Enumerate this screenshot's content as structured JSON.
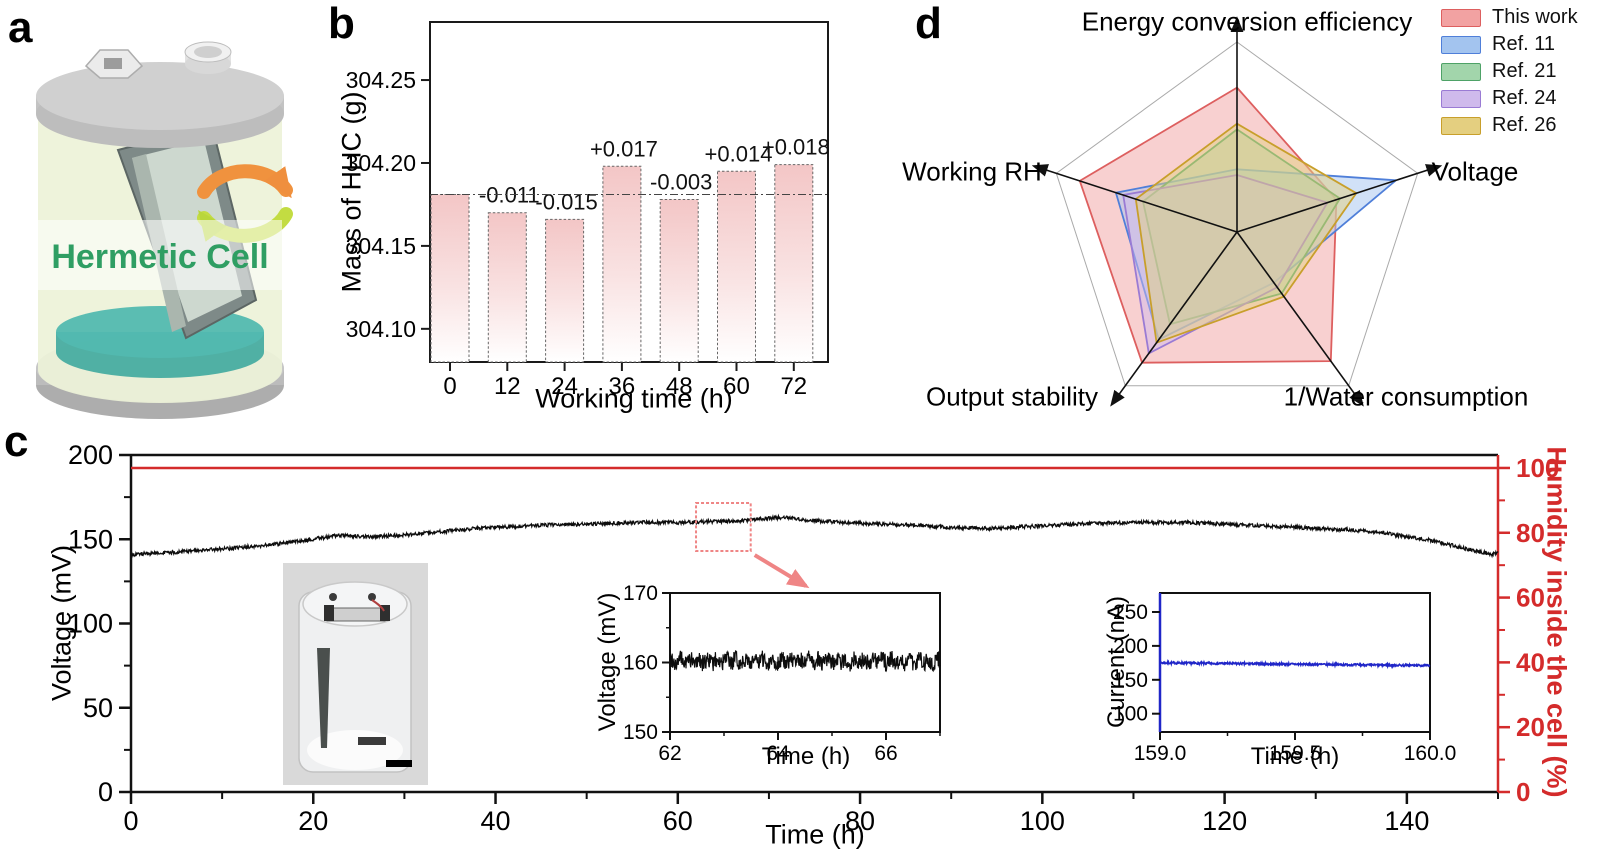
{
  "figure": {
    "panel_labels": {
      "a": "a",
      "b": "b",
      "c": "c",
      "d": "d"
    }
  },
  "colors": {
    "accent_red": "#d42b2b",
    "current_blue": "#2026c8",
    "trace_black": "#0d0d0d",
    "bar_pink": "#f3c6c6",
    "zoom_pink": "#ef8585"
  },
  "panel_a": {
    "caption": "Hermetic Cell",
    "caption_color": "#2f9e63"
  },
  "chart_data": [
    {
      "id": "mass_bar",
      "type": "bar",
      "title": "",
      "xlabel": "Working time (h)",
      "ylabel": "Mass of HHC (g)",
      "categories": [
        "0",
        "12",
        "24",
        "36",
        "48",
        "60",
        "72"
      ],
      "values": [
        304.181,
        304.17,
        304.166,
        304.198,
        304.178,
        304.195,
        304.199
      ],
      "delta_labels": [
        "",
        "-0.011",
        "-0.015",
        "+0.017",
        "-0.003",
        "+0.014",
        "+0.018"
      ],
      "ylim": [
        304.08,
        304.285
      ],
      "yticks": [
        304.1,
        304.15,
        304.2,
        304.25
      ],
      "ytick_labels": [
        "304.10",
        "304.15",
        "304.20",
        "304.25"
      ],
      "reference_line": 304.181,
      "grid": false
    },
    {
      "id": "stability_line",
      "type": "line",
      "xlabel": "Time (h)",
      "ylabel_left": "Voltage (mV)",
      "ylabel_right": "Humidity inside the cell (%)",
      "xlim": [
        0,
        150
      ],
      "xticks": [
        0,
        20,
        40,
        60,
        80,
        100,
        120,
        140
      ],
      "ylim_left": [
        0,
        200
      ],
      "yticks_left": [
        0,
        50,
        100,
        150,
        200
      ],
      "ylim_right": [
        0,
        104
      ],
      "yticks_right": [
        0,
        20,
        40,
        60,
        80,
        100
      ],
      "humidity_value": 100,
      "voltage_anchor_points": [
        [
          0,
          141
        ],
        [
          4,
          142
        ],
        [
          8,
          143.5
        ],
        [
          12,
          145
        ],
        [
          16,
          147
        ],
        [
          20,
          150
        ],
        [
          23,
          152.5
        ],
        [
          26,
          151.5
        ],
        [
          30,
          152.5
        ],
        [
          34,
          154.5
        ],
        [
          38,
          156.5
        ],
        [
          42,
          157.5
        ],
        [
          46,
          158.5
        ],
        [
          50,
          159
        ],
        [
          55,
          160
        ],
        [
          60,
          160
        ],
        [
          64,
          160.5
        ],
        [
          67,
          161
        ],
        [
          70,
          162.5
        ],
        [
          72,
          163
        ],
        [
          74,
          161.5
        ],
        [
          78,
          160
        ],
        [
          82,
          159
        ],
        [
          86,
          158.5
        ],
        [
          90,
          157
        ],
        [
          94,
          156.5
        ],
        [
          98,
          157.5
        ],
        [
          102,
          158.5
        ],
        [
          106,
          159.5
        ],
        [
          110,
          160
        ],
        [
          114,
          160
        ],
        [
          118,
          159.5
        ],
        [
          122,
          158.5
        ],
        [
          126,
          157.5
        ],
        [
          130,
          156.5
        ],
        [
          134,
          155.5
        ],
        [
          137,
          154
        ],
        [
          140,
          151.5
        ],
        [
          143,
          149
        ],
        [
          146,
          145
        ],
        [
          148,
          142.5
        ],
        [
          149.3,
          141
        ],
        [
          150,
          142
        ]
      ],
      "noise_mV": 1.1,
      "zoom_box": {
        "x": [
          62,
          68
        ],
        "y": [
          143,
          171.5
        ]
      }
    },
    {
      "id": "inset_voltage",
      "type": "line",
      "xlabel": "Time (h)",
      "ylabel": "Voltage (mV)",
      "xlim": [
        62,
        67
      ],
      "xticks": [
        62,
        64,
        66
      ],
      "ylim": [
        150,
        170
      ],
      "yticks": [
        150,
        160,
        170
      ],
      "mean_mV": 160.2,
      "noise_mV": 1.2
    },
    {
      "id": "inset_current",
      "type": "line",
      "xlabel": "Time (h)",
      "ylabel": "Current (nA)",
      "xlim": [
        159.0,
        160.0
      ],
      "xticks": [
        159.0,
        159.5,
        160.0
      ],
      "xtick_labels": [
        "159.0",
        "159.5",
        "160.0"
      ],
      "ylim": [
        73,
        278
      ],
      "yticks": [
        100,
        150,
        200,
        250
      ],
      "start_nA": 175,
      "end_nA": 171,
      "noise_nA": 1.5
    },
    {
      "id": "radar_compare",
      "type": "radar",
      "axes": [
        "Energy conversion efficiency",
        "Voltage",
        "1/Water consumption",
        "Output stability",
        "Working RH"
      ],
      "axis_range": [
        0,
        1
      ],
      "series": [
        {
          "name": "This work",
          "values": [
            0.76,
            0.55,
            0.84,
            0.85,
            0.87
          ],
          "stroke": "#dd5f5f",
          "fill": "#f2a2a2"
        },
        {
          "name": "Ref. 11",
          "values": [
            0.33,
            0.88,
            0.33,
            0.7,
            0.67
          ],
          "stroke": "#4f7fd9",
          "fill": "#a3c4ef"
        },
        {
          "name": "Ref. 21",
          "values": [
            0.54,
            0.57,
            0.4,
            0.6,
            0.52
          ],
          "stroke": "#4ea267",
          "fill": "#a2d5ab"
        },
        {
          "name": "Ref. 24",
          "values": [
            0.3,
            0.5,
            0.36,
            0.79,
            0.63
          ],
          "stroke": "#9a7bd4",
          "fill": "#cfbaec"
        },
        {
          "name": "Ref. 26",
          "values": [
            0.57,
            0.66,
            0.42,
            0.72,
            0.56
          ],
          "stroke": "#c89f2b",
          "fill": "#e4cf80"
        }
      ],
      "legend_position": "top-right"
    }
  ]
}
